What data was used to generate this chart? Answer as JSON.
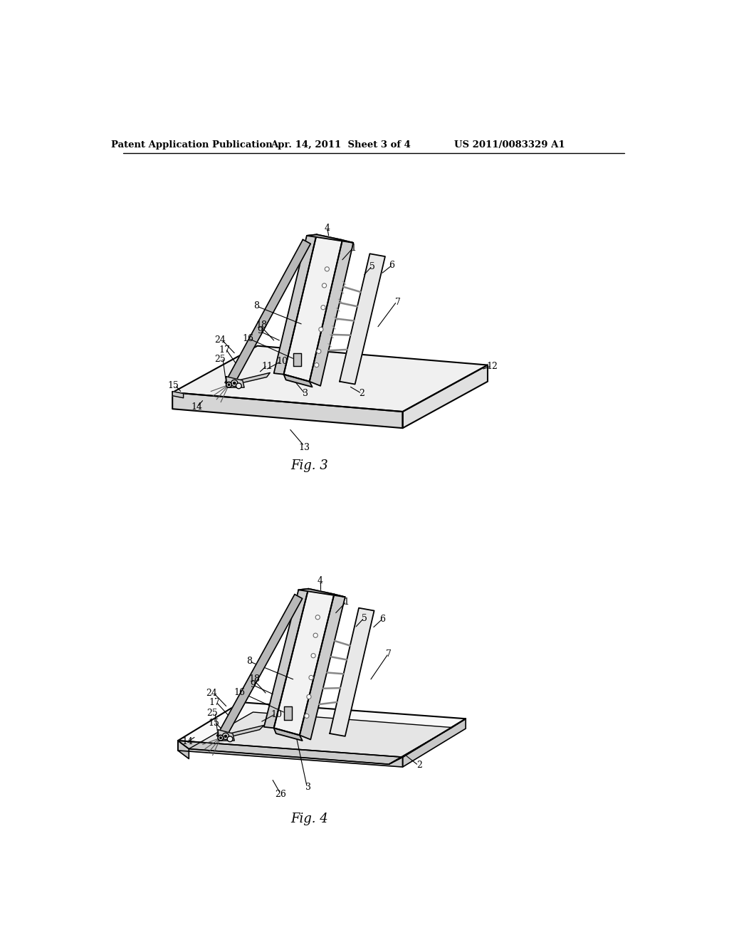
{
  "bg_color": "#ffffff",
  "header_left": "Patent Application Publication",
  "header_mid": "Apr. 14, 2011  Sheet 3 of 4",
  "header_right": "US 2011/0083329 A1",
  "fig3_caption": "Fig. 3",
  "fig4_caption": "Fig. 4"
}
